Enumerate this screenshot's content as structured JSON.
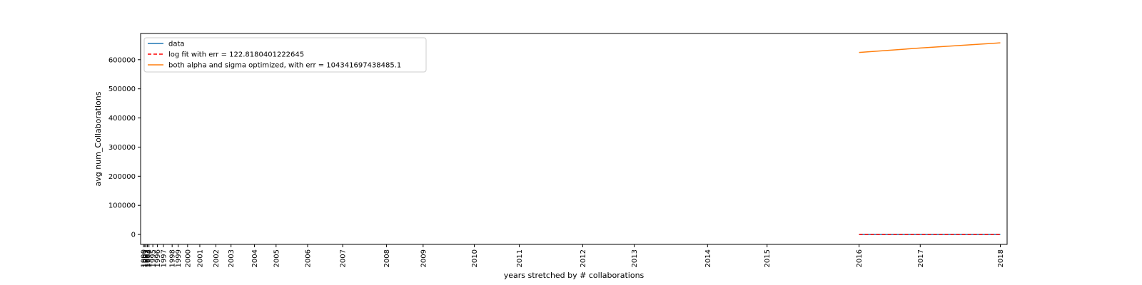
{
  "chart_data": {
    "type": "line",
    "xlabel": "years stretched by # collaborations",
    "ylabel": "avg num_Collaborations",
    "ylim": [
      -34000,
      690000
    ],
    "grid": false,
    "legend_placement": "top-left",
    "x_ticks": [
      {
        "label": "1990",
        "pos": 0.0
      },
      {
        "label": "1991",
        "pos": 0.4
      },
      {
        "label": "1992",
        "pos": 0.8
      },
      {
        "label": "1993",
        "pos": 1.2
      },
      {
        "label": "1994",
        "pos": 1.7
      },
      {
        "label": "1995",
        "pos": 2.9
      },
      {
        "label": "1996",
        "pos": 4.3
      },
      {
        "label": "1997",
        "pos": 6.2
      },
      {
        "label": "1998",
        "pos": 8.9
      },
      {
        "label": "1999",
        "pos": 10.8
      },
      {
        "label": "2000",
        "pos": 13.7
      },
      {
        "label": "2001",
        "pos": 17.5
      },
      {
        "label": "2002",
        "pos": 22.5
      },
      {
        "label": "2003",
        "pos": 27.2
      },
      {
        "label": "2004",
        "pos": 34.5
      },
      {
        "label": "2005",
        "pos": 41.2
      },
      {
        "label": "2006",
        "pos": 51.0
      },
      {
        "label": "2007",
        "pos": 61.9
      },
      {
        "label": "2008",
        "pos": 75.5
      },
      {
        "label": "2009",
        "pos": 86.9
      },
      {
        "label": "2010",
        "pos": 102.8
      },
      {
        "label": "2011",
        "pos": 116.8
      },
      {
        "label": "2012",
        "pos": 136.5
      },
      {
        "label": "2013",
        "pos": 152.5
      },
      {
        "label": "2014",
        "pos": 175.3
      },
      {
        "label": "2015",
        "pos": 193.8
      },
      {
        "label": "2016",
        "pos": 222.4
      },
      {
        "label": "2017",
        "pos": 241.4
      },
      {
        "label": "2018",
        "pos": 266.3
      }
    ],
    "xlim": [
      -0.9,
      268.4
    ],
    "y_ticks": [
      0,
      100000,
      200000,
      300000,
      400000,
      500000,
      600000
    ],
    "series": [
      {
        "name": "data",
        "color": "#1f77b4",
        "style": "solid",
        "points": [
          [
            222.4,
            0
          ],
          [
            241.4,
            0
          ],
          [
            266.3,
            0
          ]
        ]
      },
      {
        "name": "log fit with err = 122.8180401222645",
        "color": "#ff0000",
        "style": "dashed",
        "points": [
          [
            222.4,
            0
          ],
          [
            241.4,
            0
          ],
          [
            266.3,
            0
          ]
        ]
      },
      {
        "name": "both alpha and sigma optimized, with err = 104341697438485.1",
        "color": "#ff7f0e",
        "style": "solid",
        "points": [
          [
            222.4,
            625000
          ],
          [
            241.4,
            640000
          ],
          [
            266.3,
            658000
          ]
        ]
      }
    ]
  }
}
